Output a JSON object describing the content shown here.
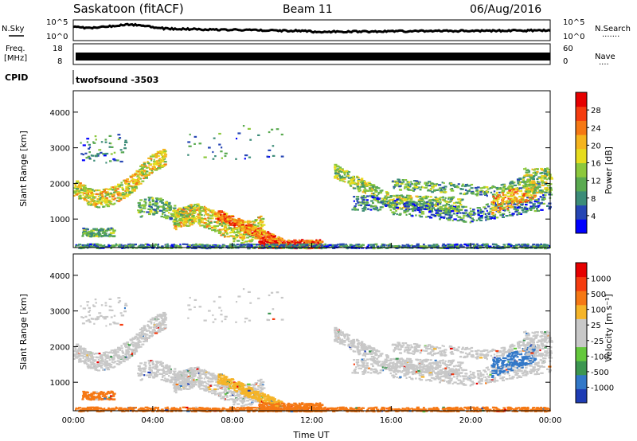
{
  "header": {
    "station": "Saskatoon (fitACF)",
    "beam": "Beam 11",
    "date": "06/Aug/2016"
  },
  "status_panels": {
    "nsky_label": "N.Sky",
    "nsearch_label": "N.Search",
    "nsearch_dots": "·······",
    "noise_ticks": [
      "10^5",
      "10^0"
    ],
    "noise_ticks_right": [
      "10^5",
      "10^0"
    ],
    "freq_label_1": "Freq.",
    "freq_label_2": "[MHz]",
    "freq_ticks": [
      "18",
      "8"
    ],
    "nave_label": "Nave",
    "nave_dots": "····",
    "nave_ticks": [
      "60",
      "0"
    ],
    "cpid_label": "CPID",
    "cpid_value": "twofsound  -3503"
  },
  "chart_data": [
    {
      "type": "heatmap",
      "name": "power",
      "ylabel": "Slant Range [km]",
      "ylim": [
        200,
        4600
      ],
      "yticks": [
        "4000",
        "3000",
        "2000",
        "1000"
      ],
      "colorbar_label": "Power [dB]",
      "colorbar_ticks": [
        "28",
        "24",
        "20",
        "16",
        "12",
        "8",
        "4"
      ],
      "colors": [
        "#0000ff",
        "#2646b4",
        "#3c8c78",
        "#5aaa50",
        "#8cc83c",
        "#e6dc1e",
        "#f5b41e",
        "#f57814",
        "#f53c0f",
        "#e60000"
      ]
    },
    {
      "type": "heatmap",
      "name": "velocity",
      "ylabel": "Slant Range [km]",
      "xlabel": "Time UT",
      "ylim": [
        200,
        4600
      ],
      "yticks": [
        "4000",
        "3000",
        "2000",
        "1000"
      ],
      "xticks": [
        "00:00",
        "04:00",
        "08:00",
        "12:00",
        "16:00",
        "20:00",
        "00:00"
      ],
      "colorbar_label": "Velocity [m s⁻¹]",
      "colorbar_ticks": [
        "1000",
        "500",
        "100",
        "25",
        "-25",
        "-100",
        "-500",
        "-1000"
      ],
      "colors": [
        "#1e3cb4",
        "#3278c8",
        "#3c9650",
        "#64c83c",
        "#c8c8c8",
        "#c8c8c8",
        "#f5b428",
        "#f57814",
        "#f53c0f",
        "#e60000"
      ]
    }
  ]
}
